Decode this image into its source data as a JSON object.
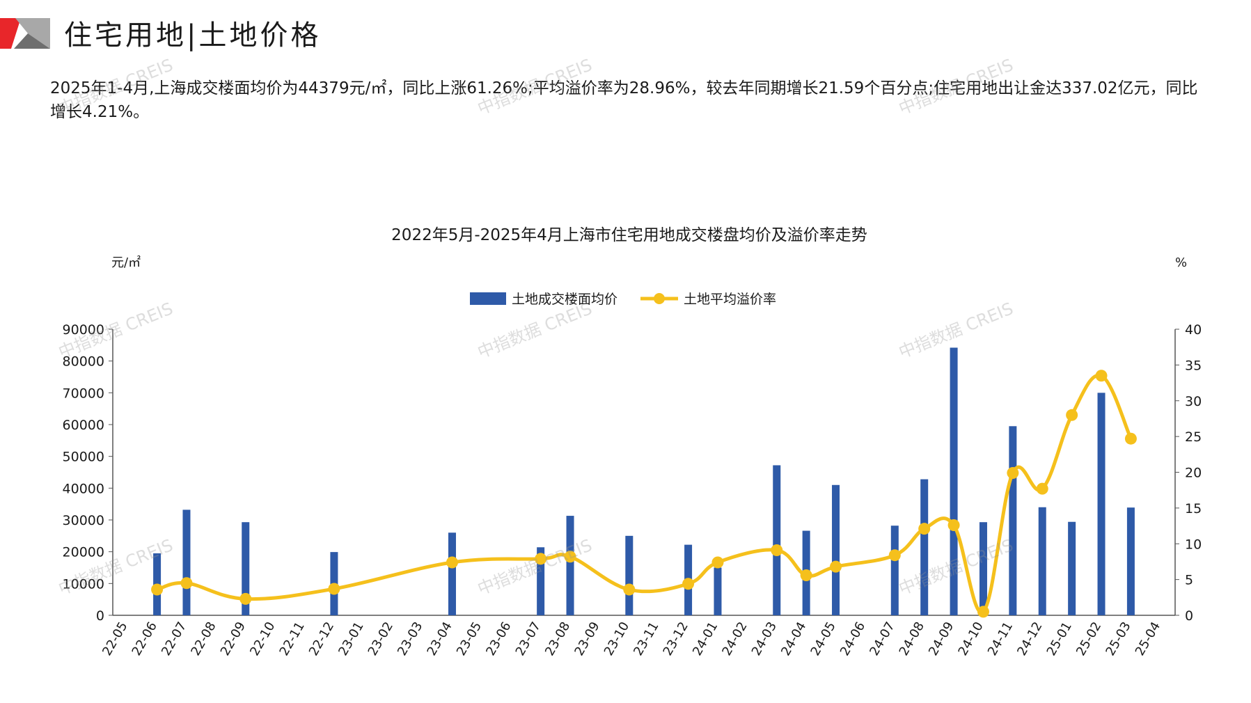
{
  "header": {
    "title": "住宅用地|土地价格",
    "summary": "2025年1-4月,上海成交楼面均价为44379元/㎡，同比上涨61.26%;平均溢价率为28.96%，较去年同期增长21.59个百分点;住宅用地出让金达337.02亿元，同比增长4.21%。"
  },
  "watermark": "中指数据 CREIS",
  "colors": {
    "bar": "#2e5aa8",
    "line": "#f5c01c",
    "logo_red": "#e8262a",
    "logo_gray": "#9a9a9a"
  },
  "chart_data": {
    "type": "bar",
    "title": "2022年5月-2025年4月上海市住宅用地成交楼盘均价及溢价率走势",
    "y_unit_left": "元/㎡",
    "y_unit_right": "%",
    "ylim_left": [
      0,
      90000
    ],
    "ylim_right": [
      0,
      40
    ],
    "yticks_left": [
      "0",
      "10000",
      "20000",
      "30000",
      "40000",
      "50000",
      "60000",
      "70000",
      "80000",
      "90000"
    ],
    "yticks_right": [
      "0",
      "5",
      "10",
      "15",
      "20",
      "25",
      "30",
      "35",
      "40"
    ],
    "categories": [
      "22-05",
      "22-06",
      "22-07",
      "22-08",
      "22-09",
      "22-10",
      "22-11",
      "22-12",
      "23-01",
      "23-02",
      "23-03",
      "23-04",
      "23-05",
      "23-06",
      "23-07",
      "23-08",
      "23-09",
      "23-10",
      "23-11",
      "23-12",
      "24-01",
      "24-02",
      "24-03",
      "24-04",
      "24-05",
      "24-06",
      "24-07",
      "24-08",
      "24-09",
      "24-10",
      "24-11",
      "24-12",
      "25-01",
      "25-02",
      "25-03",
      "25-04"
    ],
    "legend_position": "top-center",
    "series": [
      {
        "name": "土地成交楼面均价",
        "type": "bar",
        "axis": "left",
        "values": [
          null,
          19500,
          33200,
          null,
          29300,
          null,
          null,
          19900,
          null,
          null,
          null,
          26000,
          null,
          null,
          21400,
          31300,
          null,
          25000,
          null,
          22200,
          15000,
          null,
          47200,
          26600,
          41000,
          null,
          28200,
          42800,
          84200,
          29300,
          59500,
          34000,
          29400,
          70000,
          33900,
          null
        ]
      },
      {
        "name": "土地平均溢价率",
        "type": "line",
        "axis": "right",
        "values": [
          null,
          3.6,
          4.5,
          null,
          2.3,
          null,
          null,
          3.7,
          null,
          null,
          null,
          7.4,
          null,
          null,
          7.9,
          8.2,
          null,
          3.6,
          null,
          4.4,
          7.4,
          null,
          9.1,
          5.6,
          6.8,
          null,
          8.4,
          12.1,
          12.6,
          0.5,
          19.9,
          17.7,
          28.0,
          33.5,
          24.7,
          null
        ]
      }
    ]
  }
}
